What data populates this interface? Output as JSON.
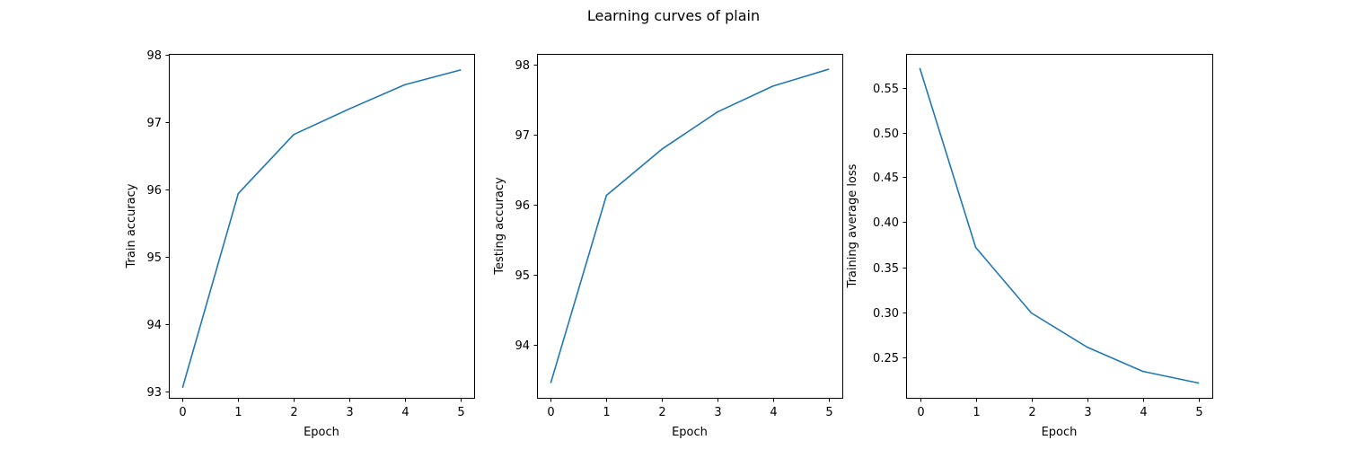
{
  "figure": {
    "title": "Learning curves of plain"
  },
  "colors": {
    "series": "#1f77b4",
    "axes": "#000000",
    "background": "#ffffff"
  },
  "chart_data": [
    {
      "type": "line",
      "xlabel": "Epoch",
      "ylabel": "Train accuracy",
      "x": [
        0,
        1,
        2,
        3,
        4,
        5
      ],
      "xticks": [
        "0",
        "1",
        "2",
        "3",
        "4",
        "5"
      ],
      "yticks": [
        "93",
        "94",
        "95",
        "96",
        "97",
        "98"
      ],
      "xlim": [
        -0.25,
        5.25
      ],
      "ylim": [
        92.9,
        98.02
      ],
      "grid": false,
      "series": [
        {
          "values": [
            93.06,
            95.94,
            96.82,
            97.2,
            97.56,
            97.78
          ]
        }
      ]
    },
    {
      "type": "line",
      "xlabel": "Epoch",
      "ylabel": "Testing accuracy",
      "x": [
        0,
        1,
        2,
        3,
        4,
        5
      ],
      "xticks": [
        "0",
        "1",
        "2",
        "3",
        "4",
        "5"
      ],
      "yticks": [
        "94",
        "95",
        "96",
        "97",
        "98"
      ],
      "xlim": [
        -0.25,
        5.25
      ],
      "ylim": [
        93.25,
        98.16
      ],
      "grid": false,
      "series": [
        {
          "values": [
            93.47,
            96.14,
            96.8,
            97.33,
            97.7,
            97.94
          ]
        }
      ]
    },
    {
      "type": "line",
      "xlabel": "Epoch",
      "ylabel": "Training average loss",
      "x": [
        0,
        1,
        2,
        3,
        4,
        5
      ],
      "xticks": [
        "0",
        "1",
        "2",
        "3",
        "4",
        "5"
      ],
      "yticks": [
        "0.25",
        "0.30",
        "0.35",
        "0.40",
        "0.45",
        "0.50",
        "0.55"
      ],
      "xlim": [
        -0.25,
        5.25
      ],
      "ylim": [
        0.2045,
        0.5875
      ],
      "grid": false,
      "series": [
        {
          "values": [
            0.571,
            0.372,
            0.299,
            0.261,
            0.234,
            0.221
          ]
        }
      ]
    }
  ]
}
